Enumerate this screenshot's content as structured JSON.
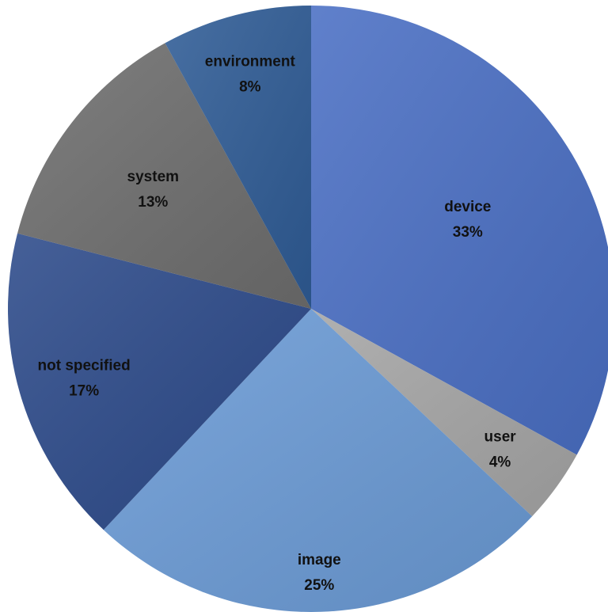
{
  "chart_data": {
    "type": "pie",
    "title": "",
    "start_angle_deg": 0,
    "direction": "clockwise",
    "slices": [
      {
        "label": "device",
        "value": 33,
        "value_label": "33%",
        "color": "#4a6fc4"
      },
      {
        "label": "user",
        "value": 4,
        "value_label": "4%",
        "color": "#a6a6a6"
      },
      {
        "label": "image",
        "value": 25,
        "value_label": "25%",
        "color": "#6b9bd6"
      },
      {
        "label": "not specified",
        "value": 17,
        "value_label": "17%",
        "color": "#2c4a8a"
      },
      {
        "label": "system",
        "value": 13,
        "value_label": "13%",
        "color": "#6e6e6e"
      },
      {
        "label": "environment",
        "value": 8,
        "value_label": "8%",
        "color": "#2f5c96"
      }
    ]
  }
}
